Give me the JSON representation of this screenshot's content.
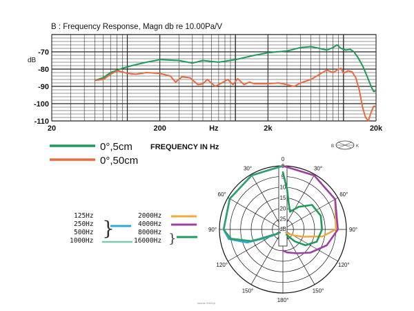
{
  "chart_data": [
    {
      "type": "line",
      "title": "B : Frequency Response, Magn db re 10.00Pa/V",
      "ylabel": "dB",
      "xlabel": "Hz",
      "xscale": "log",
      "xlim": [
        20,
        20000
      ],
      "ylim": [
        -110,
        -60
      ],
      "x_ticks": [
        {
          "value": 20,
          "label": "20"
        },
        {
          "value": 200,
          "label": "200"
        },
        {
          "value": 631,
          "label": "Hz"
        },
        {
          "value": 2000,
          "label": "2k"
        },
        {
          "value": 20000,
          "label": "20k"
        }
      ],
      "y_ticks": [
        {
          "value": -70,
          "label": "-70"
        },
        {
          "value": -80,
          "label": "-80"
        },
        {
          "value": -90,
          "label": "-90"
        },
        {
          "value": -100,
          "label": "-100"
        },
        {
          "value": -110,
          "label": "-110"
        }
      ],
      "grid": true,
      "series": [
        {
          "name": "0°,5cm",
          "color": "#1e9a5a",
          "points": [
            [
              50,
              -86.5
            ],
            [
              60,
              -85
            ],
            [
              70,
              -82
            ],
            [
              90,
              -79.5
            ],
            [
              110,
              -78
            ],
            [
              150,
              -76
            ],
            [
              200,
              -74.5
            ],
            [
              300,
              -75
            ],
            [
              400,
              -76.5
            ],
            [
              500,
              -75
            ],
            [
              700,
              -76
            ],
            [
              1000,
              -74.5
            ],
            [
              1500,
              -72
            ],
            [
              2000,
              -70.5
            ],
            [
              3000,
              -69.5
            ],
            [
              4000,
              -67.5
            ],
            [
              5000,
              -67
            ],
            [
              6000,
              -68
            ],
            [
              7000,
              -69
            ],
            [
              8000,
              -67.5
            ],
            [
              8700,
              -66
            ],
            [
              9500,
              -68
            ],
            [
              10500,
              -69
            ],
            [
              11500,
              -68.5
            ],
            [
              12500,
              -70
            ],
            [
              13500,
              -73
            ],
            [
              15000,
              -78
            ],
            [
              16500,
              -84
            ],
            [
              18000,
              -90
            ],
            [
              19000,
              -93
            ],
            [
              20000,
              -92.5
            ]
          ]
        },
        {
          "name": "0°,50cm",
          "color": "#ea6a3e",
          "points": [
            [
              50,
              -86.5
            ],
            [
              60,
              -86
            ],
            [
              70,
              -83
            ],
            [
              80,
              -81
            ],
            [
              90,
              -81.5
            ],
            [
              100,
              -82.5
            ],
            [
              120,
              -83
            ],
            [
              150,
              -82
            ],
            [
              200,
              -82.5
            ],
            [
              250,
              -84
            ],
            [
              280,
              -87.5
            ],
            [
              320,
              -84.5
            ],
            [
              380,
              -85
            ],
            [
              450,
              -89
            ],
            [
              500,
              -88.5
            ],
            [
              550,
              -86
            ],
            [
              650,
              -90
            ],
            [
              750,
              -88
            ],
            [
              850,
              -86
            ],
            [
              950,
              -89
            ],
            [
              1050,
              -85.5
            ],
            [
              1200,
              -89
            ],
            [
              1350,
              -87.5
            ],
            [
              1500,
              -88.5
            ],
            [
              2000,
              -88.5
            ],
            [
              2500,
              -88
            ],
            [
              3000,
              -89
            ],
            [
              3500,
              -90
            ],
            [
              4000,
              -88
            ],
            [
              5000,
              -86
            ],
            [
              6000,
              -83
            ],
            [
              7000,
              -80.5
            ],
            [
              8000,
              -82
            ],
            [
              9000,
              -80
            ],
            [
              9500,
              -79.5
            ],
            [
              10000,
              -82.5
            ],
            [
              11000,
              -81
            ],
            [
              12000,
              -81.5
            ],
            [
              13000,
              -85
            ],
            [
              14000,
              -92
            ],
            [
              15000,
              -102
            ],
            [
              16000,
              -108
            ],
            [
              17000,
              -110
            ],
            [
              18000,
              -105
            ],
            [
              19000,
              -101.5
            ],
            [
              20000,
              -101.5
            ]
          ]
        }
      ]
    },
    {
      "type": "polar",
      "theta_ticks": [
        {
          "deg": 0,
          "label": "0"
        },
        {
          "deg": 30,
          "label": "30°"
        },
        {
          "deg": 60,
          "label": "60°"
        },
        {
          "deg": 90,
          "label": "90°"
        },
        {
          "deg": 120,
          "label": "120°"
        },
        {
          "deg": 150,
          "label": "150°"
        },
        {
          "deg": 180,
          "label": "180°"
        }
      ],
      "ring_labels": [
        "0",
        "5",
        "10",
        "15",
        "20",
        "25"
      ],
      "r_unit": "dB",
      "r_max": 30,
      "legend_labels": {
        "left_pairs": [
          "125Hz",
          "250Hz",
          "500Hz",
          "1000Hz"
        ],
        "right_pairs": [
          "2000Hz",
          "4000Hz",
          "8000Hz",
          "16000Hz"
        ]
      },
      "series": [
        {
          "name": "125Hz / 250Hz / 500Hz / 1000Hz",
          "color": "#2aa8d8",
          "side": "left",
          "points": [
            [
              0,
              0
            ],
            [
              30,
              0.5
            ],
            [
              60,
              1
            ],
            [
              90,
              2
            ],
            [
              100,
              4
            ],
            [
              110,
              12
            ],
            [
              115,
              20
            ],
            [
              120,
              24
            ],
            [
              125,
              26
            ],
            [
              130,
              27
            ],
            [
              135,
              28
            ]
          ]
        },
        {
          "name": "1000Hz",
          "color": "#2ea06a",
          "side": "left",
          "points": [
            [
              0,
              0
            ],
            [
              30,
              0.5
            ],
            [
              60,
              1
            ],
            [
              90,
              2
            ],
            [
              100,
              5
            ],
            [
              110,
              14
            ],
            [
              112,
              18
            ],
            [
              117,
              24
            ],
            [
              124,
              26
            ],
            [
              130,
              27
            ],
            [
              136,
              28
            ]
          ]
        },
        {
          "name": "2000Hz",
          "color": "#f2a83c",
          "side": "right",
          "points": [
            [
              0,
              0
            ],
            [
              30,
              0.5
            ],
            [
              60,
              1.5
            ],
            [
              90,
              5
            ],
            [
              100,
              11
            ],
            [
              110,
              20
            ],
            [
              118,
              24
            ],
            [
              125,
              26
            ],
            [
              135,
              28
            ]
          ]
        },
        {
          "name": "4000Hz",
          "color": "#9b3fa6",
          "side": "right",
          "points": [
            [
              0,
              0
            ],
            [
              30,
              0.5
            ],
            [
              60,
              1.5
            ],
            [
              90,
              4
            ],
            [
              110,
              8
            ],
            [
              130,
              13
            ],
            [
              150,
              17
            ],
            [
              170,
              19
            ],
            [
              180,
              20
            ]
          ]
        },
        {
          "name": "8000Hz / 16000Hz",
          "color": "#1e9a5a",
          "side": "right",
          "points": [
            [
              0,
              3
            ],
            [
              6,
              11
            ],
            [
              12,
              17
            ],
            [
              22,
              21
            ],
            [
              35,
              17
            ],
            [
              50,
              12
            ],
            [
              70,
              11
            ],
            [
              90,
              11.5
            ],
            [
              110,
              13
            ],
            [
              125,
              17
            ],
            [
              135,
              22
            ],
            [
              140,
              25
            ],
            [
              145,
              27
            ]
          ]
        }
      ]
    }
  ],
  "legend": {
    "items": [
      {
        "label": "0°,5cm",
        "color": "#1e9a5a"
      },
      {
        "label": "0°,50cm",
        "color": "#ea6a3e"
      }
    ],
    "caption": "FREQUENCY IN Hz"
  },
  "footer": {
    "text": "source 4903.pl"
  },
  "colors": {
    "grid": "#222222",
    "axis": "#111111",
    "band_125_500": "#2aa8d8",
    "band_1000": "#7dc7b4"
  }
}
